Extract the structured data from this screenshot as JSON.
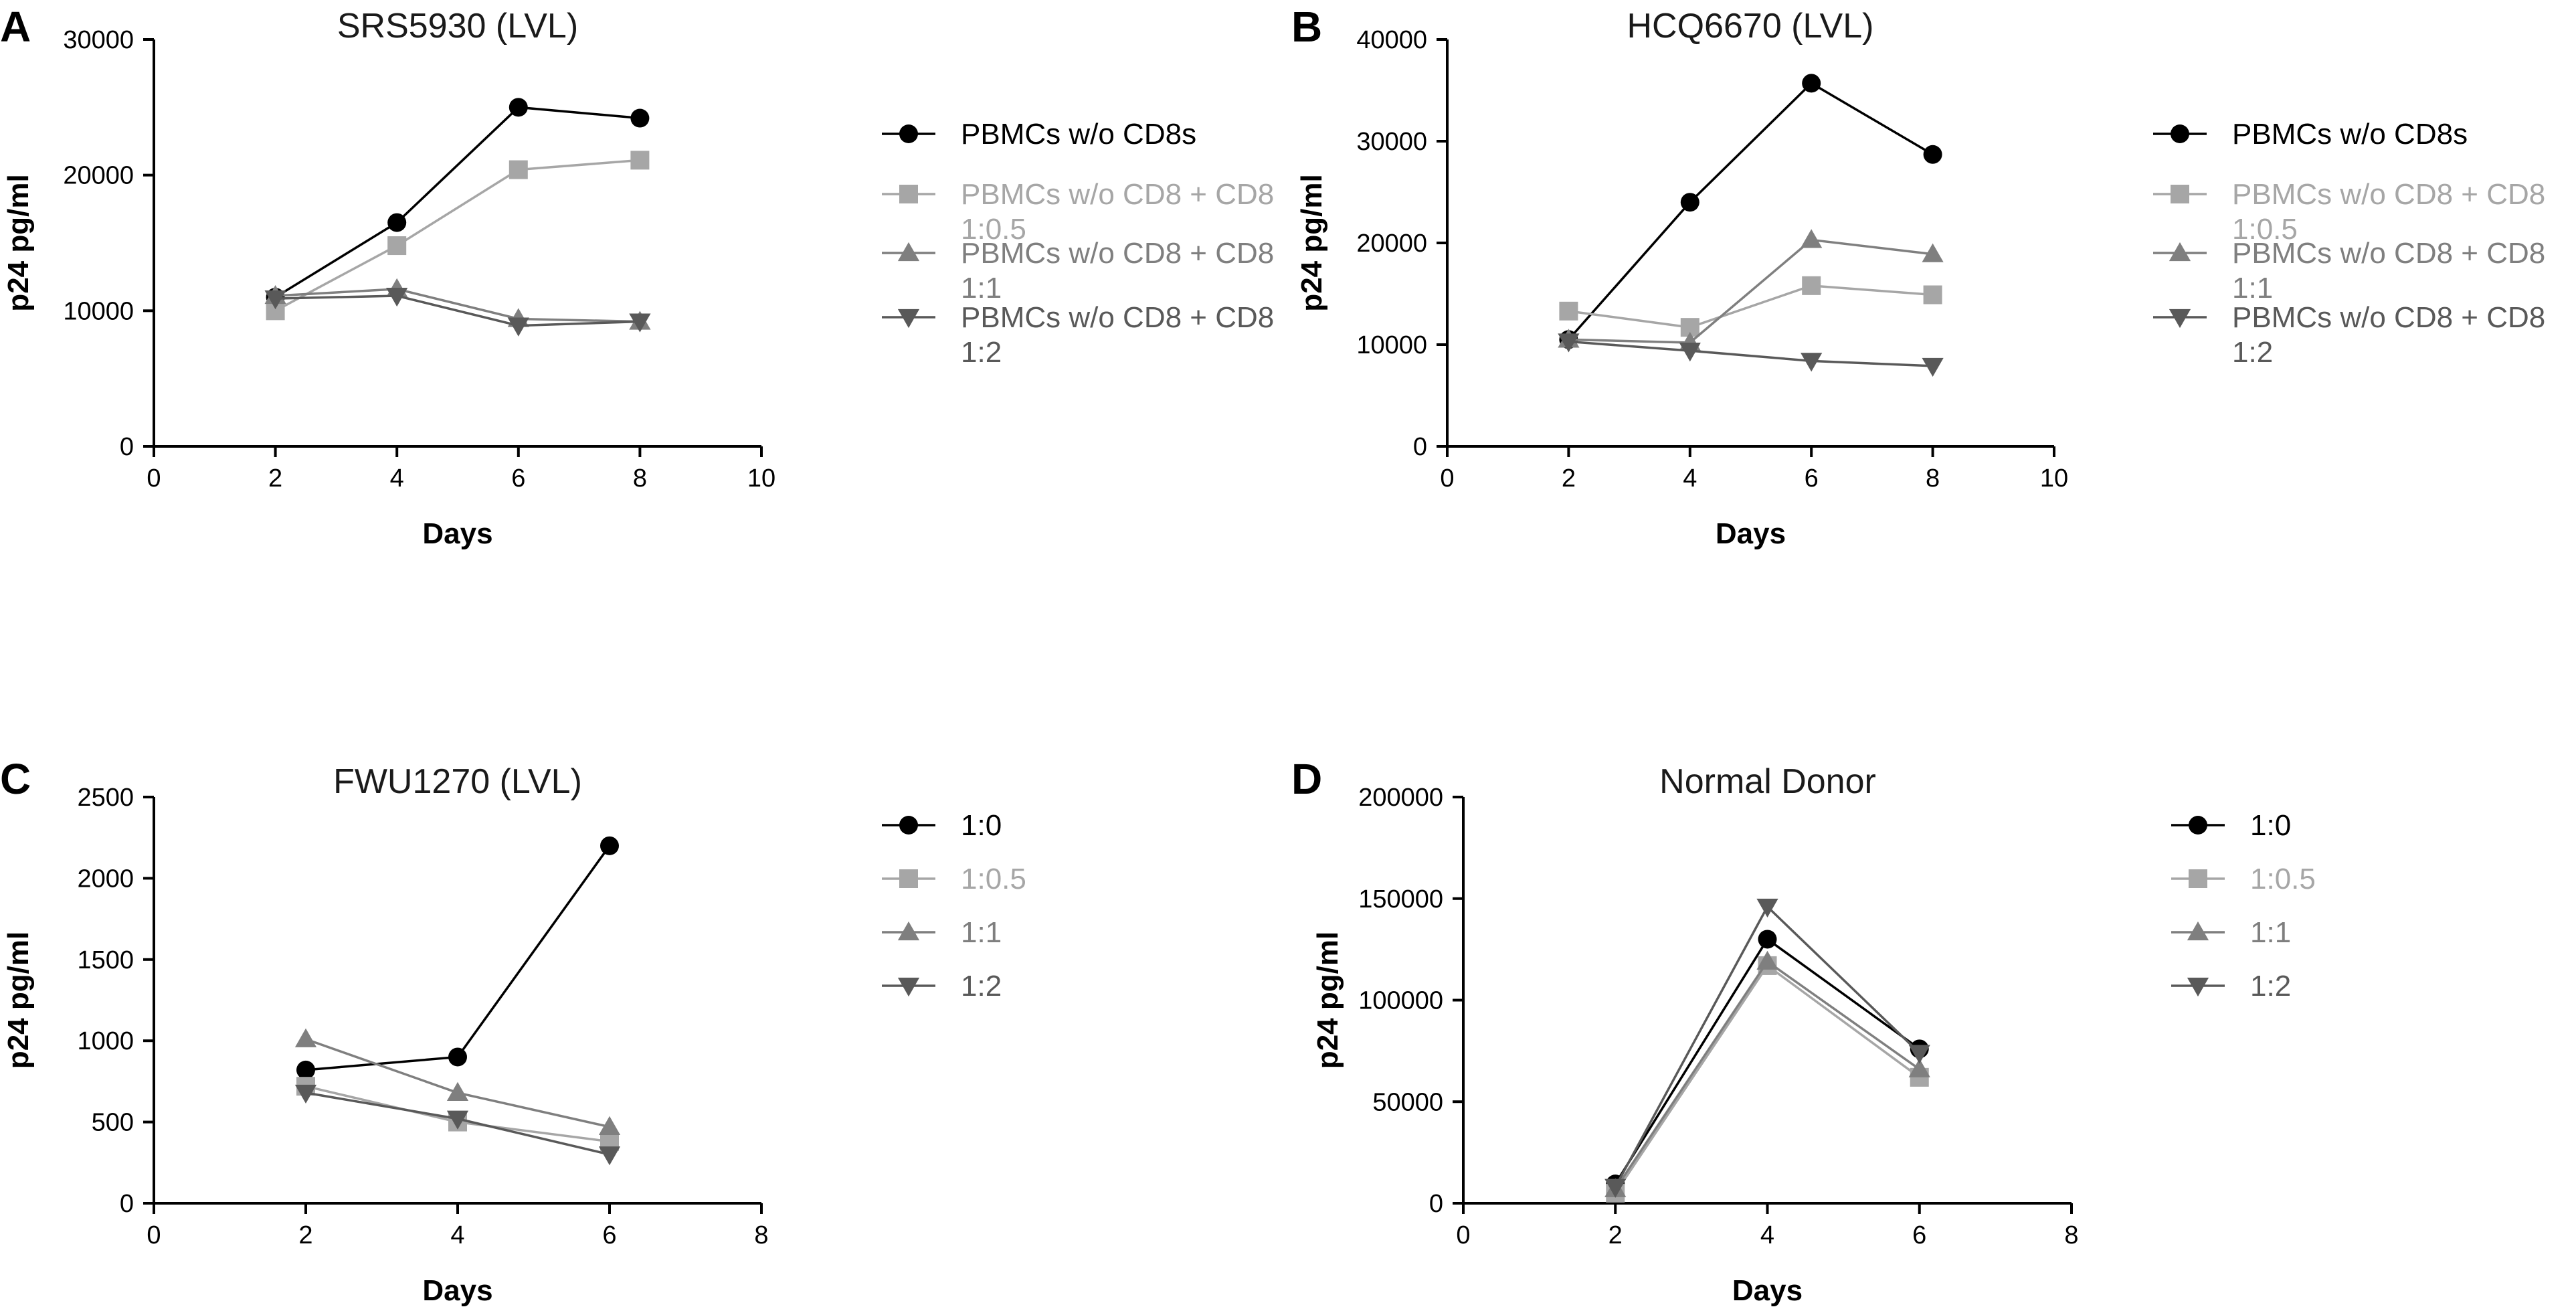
{
  "panels": [
    {
      "label": "A",
      "title": "SRS5930 (LVL)",
      "xlabel": "Days",
      "ylabel": "p24 pg/ml",
      "xticks": [
        "0",
        "2",
        "4",
        "6",
        "8",
        "10"
      ],
      "yticks": [
        "0",
        "10000",
        "20000",
        "30000"
      ],
      "legend": [
        {
          "line1": "PBMCs w/o CD8s",
          "line2": ""
        },
        {
          "line1": "PBMCs w/o CD8 + CD8",
          "line2": "1:0.5"
        },
        {
          "line1": "PBMCs w/o CD8 + CD8",
          "line2": "1:1"
        },
        {
          "line1": "PBMCs w/o CD8 + CD8",
          "line2": "1:2"
        }
      ]
    },
    {
      "label": "B",
      "title": "HCQ6670 (LVL)",
      "xlabel": "Days",
      "ylabel": "p24 pg/ml",
      "xticks": [
        "0",
        "2",
        "4",
        "6",
        "8",
        "10"
      ],
      "yticks": [
        "0",
        "10000",
        "20000",
        "30000",
        "40000"
      ],
      "legend": [
        {
          "line1": "PBMCs w/o CD8s",
          "line2": ""
        },
        {
          "line1": "PBMCs w/o CD8 + CD8",
          "line2": "1:0.5"
        },
        {
          "line1": "PBMCs w/o CD8 + CD8",
          "line2": "1:1"
        },
        {
          "line1": "PBMCs w/o CD8 + CD8",
          "line2": "1:2"
        }
      ]
    },
    {
      "label": "C",
      "title": "FWU1270 (LVL)",
      "xlabel": "Days",
      "ylabel": "p24 pg/ml",
      "xticks": [
        "0",
        "2",
        "4",
        "6",
        "8"
      ],
      "yticks": [
        "0",
        "500",
        "1000",
        "1500",
        "2000",
        "2500"
      ],
      "legend": [
        {
          "line1": "1:0",
          "line2": ""
        },
        {
          "line1": "1:0.5",
          "line2": ""
        },
        {
          "line1": "1:1",
          "line2": ""
        },
        {
          "line1": "1:2",
          "line2": ""
        }
      ]
    },
    {
      "label": "D",
      "title": "Normal Donor",
      "xlabel": "Days",
      "ylabel": "p24 pg/ml",
      "xticks": [
        "0",
        "2",
        "4",
        "6",
        "8"
      ],
      "yticks": [
        "0",
        "50000",
        "100000",
        "150000",
        "200000"
      ],
      "legend": [
        {
          "line1": "1:0",
          "line2": ""
        },
        {
          "line1": "1:0.5",
          "line2": ""
        },
        {
          "line1": "1:1",
          "line2": ""
        },
        {
          "line1": "1:2",
          "line2": ""
        }
      ]
    }
  ],
  "series_styles": [
    {
      "marker": "circle",
      "color": "#000000"
    },
    {
      "marker": "square",
      "color": "#a6a6a6"
    },
    {
      "marker": "triangle-up",
      "color": "#7f7f7f"
    },
    {
      "marker": "triangle-down",
      "color": "#595959"
    }
  ],
  "chart_data": [
    {
      "type": "line",
      "title": "SRS5930 (LVL)",
      "xlabel": "Days",
      "ylabel": "p24 pg/ml",
      "xlim": [
        0,
        10
      ],
      "ylim": [
        0,
        30000
      ],
      "x": [
        2,
        4,
        6,
        8
      ],
      "series": [
        {
          "name": "PBMCs w/o CD8s",
          "values": [
            11000,
            16500,
            25000,
            24200
          ]
        },
        {
          "name": "PBMCs w/o CD8 + CD8 1:0.5",
          "values": [
            10000,
            14800,
            20400,
            21100
          ]
        },
        {
          "name": "PBMCs w/o CD8 + CD8 1:1",
          "values": [
            11100,
            11600,
            9400,
            9200
          ]
        },
        {
          "name": "PBMCs w/o CD8 + CD8 1:2",
          "values": [
            10900,
            11100,
            8900,
            9200
          ]
        }
      ]
    },
    {
      "type": "line",
      "title": "HCQ6670 (LVL)",
      "xlabel": "Days",
      "ylabel": "p24 pg/ml",
      "xlim": [
        0,
        10
      ],
      "ylim": [
        0,
        40000
      ],
      "x": [
        2,
        4,
        6,
        8
      ],
      "series": [
        {
          "name": "PBMCs w/o CD8s",
          "values": [
            10500,
            24000,
            35700,
            28700
          ]
        },
        {
          "name": "PBMCs w/o CD8 + CD8 1:0.5",
          "values": [
            13300,
            11700,
            15800,
            14900
          ]
        },
        {
          "name": "PBMCs w/o CD8 + CD8 1:1",
          "values": [
            10500,
            10200,
            20300,
            18900
          ]
        },
        {
          "name": "PBMCs w/o CD8 + CD8 1:2",
          "values": [
            10300,
            9400,
            8400,
            7900
          ]
        }
      ]
    },
    {
      "type": "line",
      "title": "FWU1270 (LVL)",
      "xlabel": "Days",
      "ylabel": "p24 pg/ml",
      "xlim": [
        0,
        8
      ],
      "ylim": [
        0,
        2500
      ],
      "x": [
        2,
        4,
        6
      ],
      "series": [
        {
          "name": "1:0",
          "values": [
            820,
            900,
            2200
          ]
        },
        {
          "name": "1:0.5",
          "values": [
            720,
            500,
            380
          ]
        },
        {
          "name": "1:1",
          "values": [
            1010,
            680,
            470
          ]
        },
        {
          "name": "1:2",
          "values": [
            680,
            520,
            300
          ]
        }
      ]
    },
    {
      "type": "line",
      "title": "Normal Donor",
      "xlabel": "Days",
      "ylabel": "p24 pg/ml",
      "xlim": [
        0,
        8
      ],
      "ylim": [
        0,
        200000
      ],
      "x": [
        2,
        4,
        6
      ],
      "series": [
        {
          "name": "1:0",
          "values": [
            9500,
            130000,
            76000
          ]
        },
        {
          "name": "1:0.5",
          "values": [
            5000,
            117000,
            62000
          ]
        },
        {
          "name": "1:1",
          "values": [
            7000,
            119000,
            66000
          ]
        },
        {
          "name": "1:2",
          "values": [
            8000,
            146000,
            74000
          ]
        }
      ]
    }
  ]
}
